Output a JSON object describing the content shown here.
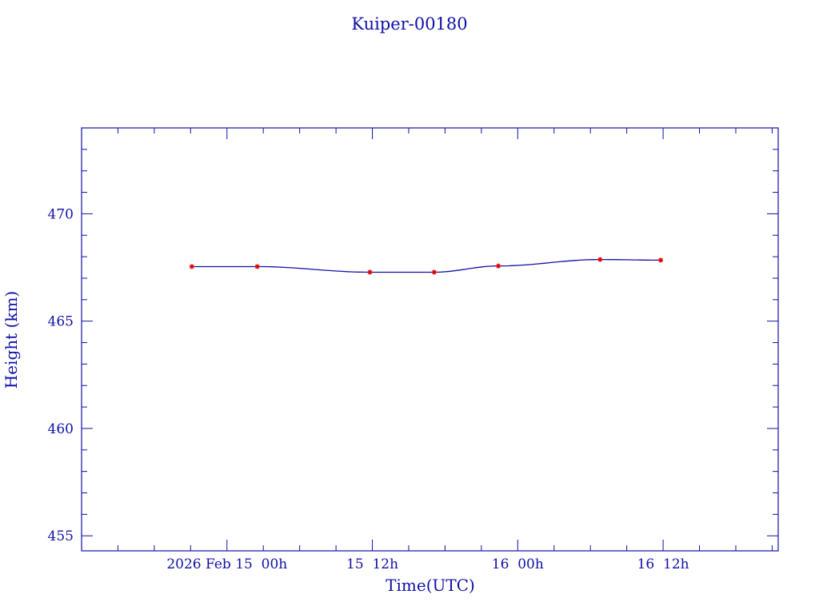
{
  "chart_data": {
    "type": "line",
    "title": "Kuiper-00180",
    "xlabel": "Time(UTC)",
    "ylabel": "Height (km)",
    "x_units": "hours since 2026 Feb 15 00h UTC",
    "xlim": [
      -12,
      45.5
    ],
    "ylim": [
      454.3,
      474.0
    ],
    "x_ticks": [
      {
        "value": 0,
        "label": "2026 Feb 15  00h"
      },
      {
        "value": 12,
        "label": "15  12h"
      },
      {
        "value": 24,
        "label": "16  00h"
      },
      {
        "value": 36,
        "label": "16  12h"
      }
    ],
    "y_ticks": [
      {
        "value": 455,
        "label": "455"
      },
      {
        "value": 460,
        "label": "460"
      },
      {
        "value": 465,
        "label": "465"
      },
      {
        "value": 470,
        "label": "470"
      }
    ],
    "grid": false,
    "series": [
      {
        "name": "Height",
        "marker": "star",
        "x": [
          -2.9,
          2.5,
          11.8,
          17.1,
          22.4,
          30.8,
          35.8
        ],
        "y": [
          467.54,
          467.54,
          467.28,
          467.28,
          467.57,
          467.87,
          467.84
        ]
      }
    ],
    "colors": {
      "axis": "#1010a8",
      "line": "#1010a8",
      "marker": "#e00000"
    }
  }
}
